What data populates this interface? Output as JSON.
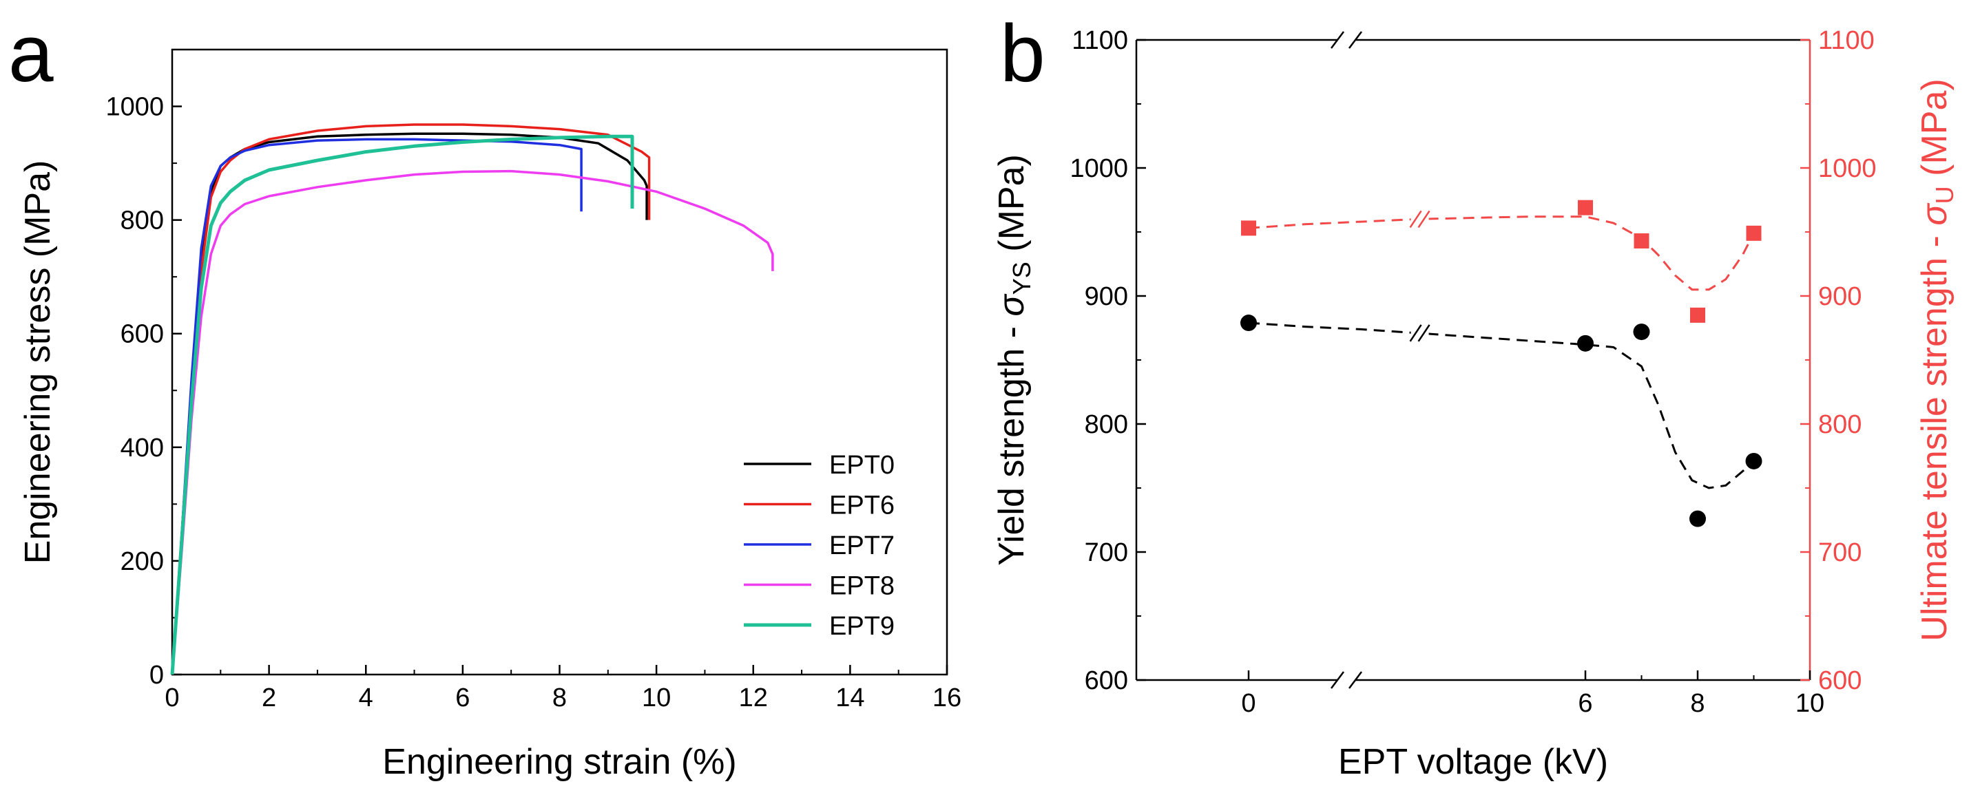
{
  "figure": {
    "panels": [
      "a",
      "b"
    ]
  },
  "chart_data": [
    {
      "type": "line",
      "panel": "a",
      "title": "",
      "xlabel": "Engineering strain (%)",
      "ylabel": "Engineering stress (MPa)",
      "xlim": [
        0,
        16
      ],
      "ylim": [
        0,
        1100
      ],
      "xticks": [
        "0",
        "2",
        "4",
        "6",
        "8",
        "10",
        "12",
        "14",
        "16"
      ],
      "yticks": [
        "0",
        "200",
        "400",
        "600",
        "800",
        "1000"
      ],
      "legend_position": "bottom-right",
      "series": [
        {
          "name": "EPT0",
          "color": "#000000",
          "x": [
            0,
            0.2,
            0.4,
            0.6,
            0.8,
            1.0,
            1.2,
            1.5,
            2.0,
            3.0,
            4.0,
            5.0,
            6.0,
            7.0,
            8.0,
            8.8,
            9.4,
            9.75,
            9.8,
            9.8
          ],
          "y": [
            0,
            250,
            500,
            720,
            850,
            895,
            910,
            925,
            937,
            947,
            950,
            952,
            952,
            950,
            945,
            935,
            905,
            870,
            860,
            800
          ]
        },
        {
          "name": "EPT6",
          "color": "#e8201b",
          "x": [
            0,
            0.2,
            0.4,
            0.6,
            0.8,
            1.0,
            1.2,
            1.5,
            2.0,
            3.0,
            4.0,
            5.0,
            6.0,
            7.0,
            8.0,
            9.0,
            9.7,
            9.85,
            9.85
          ],
          "y": [
            0,
            250,
            500,
            710,
            840,
            885,
            905,
            925,
            942,
            957,
            965,
            968,
            968,
            965,
            960,
            950,
            920,
            910,
            800
          ]
        },
        {
          "name": "EPT7",
          "color": "#1f2fe0",
          "x": [
            0,
            0.2,
            0.4,
            0.6,
            0.8,
            1.0,
            1.2,
            1.5,
            2.0,
            3.0,
            4.0,
            5.0,
            6.0,
            7.0,
            8.0,
            8.45,
            8.45
          ],
          "y": [
            0,
            250,
            520,
            750,
            860,
            895,
            910,
            922,
            932,
            940,
            942,
            942,
            940,
            938,
            932,
            925,
            815
          ]
        },
        {
          "name": "EPT8",
          "color": "#ee3cf0",
          "x": [
            0,
            0.2,
            0.4,
            0.6,
            0.8,
            1.0,
            1.2,
            1.5,
            2.0,
            3.0,
            4.0,
            5.0,
            6.0,
            7.0,
            8.0,
            9.0,
            10.0,
            11.0,
            11.8,
            12.3,
            12.4,
            12.4
          ],
          "y": [
            0,
            220,
            450,
            630,
            740,
            790,
            810,
            828,
            842,
            858,
            870,
            880,
            885,
            886,
            880,
            868,
            850,
            820,
            790,
            760,
            740,
            710
          ]
        },
        {
          "name": "EPT9",
          "color": "#1fc096",
          "x": [
            0,
            0.2,
            0.4,
            0.6,
            0.8,
            1.0,
            1.2,
            1.5,
            2.0,
            3.0,
            4.0,
            5.0,
            6.0,
            7.0,
            8.0,
            9.0,
            9.5,
            9.5
          ],
          "y": [
            0,
            240,
            480,
            680,
            790,
            830,
            850,
            870,
            888,
            905,
            920,
            930,
            937,
            942,
            945,
            947,
            947,
            820
          ]
        }
      ]
    },
    {
      "type": "scatter",
      "panel": "b",
      "title": "",
      "xlabel": "EPT voltage (kV)",
      "ylabel_left": "Yield strength - σYS (MPa)",
      "ylabel_left_parts": [
        "Yield strength - ",
        "σ",
        "YS",
        " (MPa)"
      ],
      "ylabel_right": "Ultimate tensile strength - σU (MPa)",
      "ylabel_right_parts": [
        "Ultimate tensile strength - ",
        "σ",
        "U",
        " (MPa)"
      ],
      "xlim": [
        -2,
        10
      ],
      "ylim": [
        600,
        1100
      ],
      "y2lim": [
        600,
        1100
      ],
      "axis_break": "between 0 and 6",
      "xticks": [
        "0",
        "6",
        "8",
        "10"
      ],
      "xticks_data": [
        0,
        6,
        8,
        10
      ],
      "yticks": [
        "600",
        "700",
        "800",
        "900",
        "1000",
        "1100"
      ],
      "y2ticks": [
        "600",
        "700",
        "800",
        "900",
        "1000",
        "1100"
      ],
      "series": [
        {
          "name": "Yield strength",
          "axis": "left",
          "marker": "circle",
          "color": "#000000",
          "x": [
            0,
            6,
            7,
            8,
            9
          ],
          "y": [
            879,
            863,
            872,
            726,
            771
          ],
          "fit_x": [
            0,
            1,
            2,
            3,
            4,
            5,
            6,
            6.5,
            7,
            7.3,
            7.6,
            7.9,
            8.2,
            8.5,
            8.8,
            9
          ],
          "fit_y": [
            879,
            876,
            874,
            871,
            868,
            865,
            862,
            860,
            845,
            815,
            778,
            756,
            750,
            752,
            763,
            771
          ]
        },
        {
          "name": "Ultimate tensile strength",
          "axis": "right",
          "marker": "square",
          "color": "#f24848",
          "x": [
            0,
            6,
            7,
            8,
            9
          ],
          "y": [
            953,
            969,
            943,
            885,
            949
          ],
          "fit_x": [
            0,
            1,
            2,
            3,
            4,
            5,
            6,
            6.5,
            7,
            7.3,
            7.6,
            7.9,
            8.2,
            8.5,
            8.8,
            9
          ],
          "fit_y": [
            953,
            956,
            958,
            960,
            961,
            962,
            962,
            957,
            945,
            932,
            916,
            905,
            905,
            913,
            932,
            949
          ]
        }
      ]
    }
  ]
}
